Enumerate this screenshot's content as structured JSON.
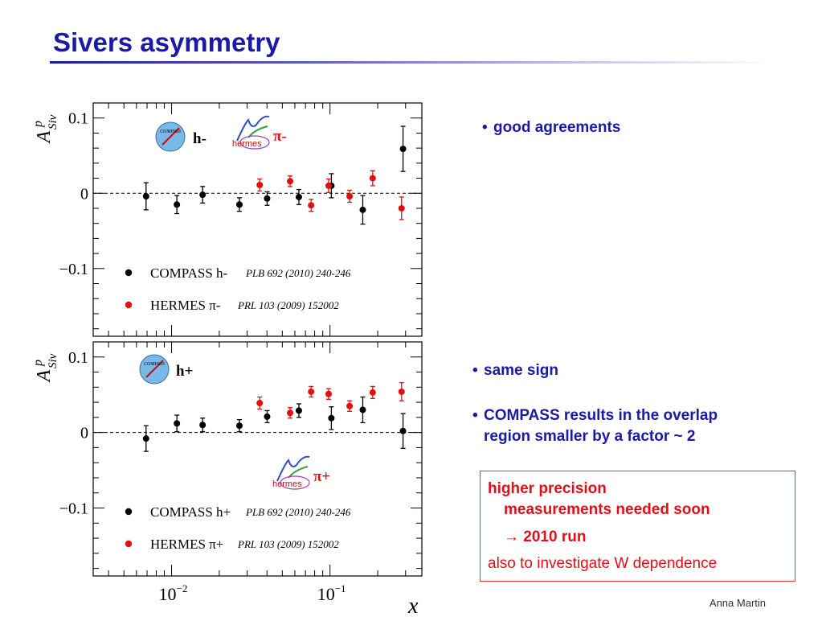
{
  "slide": {
    "title": "Sivers asymmetry",
    "footer": "Anna Martin"
  },
  "bullets_top": [
    "good agreements"
  ],
  "bullets_bottom": [
    "same sign",
    "COMPASS results in the overlap",
    "region smaller by a factor ~ 2"
  ],
  "red_box": {
    "line1": "higher precision",
    "line2": "measurements needed soon",
    "line3": "→ 2010 run",
    "line4": "also to investigate W dependence"
  },
  "colors": {
    "title": "#1a1aa6",
    "compass": "#000000",
    "hermes": "#e01010",
    "box_text": "#e0101a"
  },
  "icons": [
    "compass-logo-icon",
    "hermes-logo-icon"
  ],
  "chart_data": [
    {
      "type": "scatter",
      "panel": "top",
      "ylabel": "A",
      "ylabel_sup": "p",
      "ylabel_sub": "Siv",
      "ylim": [
        -0.19,
        0.12
      ],
      "xlim": [
        0.0032,
        0.38
      ],
      "x_log": true,
      "yticks": [
        "0.1",
        "0",
        "−0.1"
      ],
      "ytick_values": [
        0.1,
        0,
        -0.1
      ],
      "dashed_zero": true,
      "logo_labels": {
        "compass": "h-",
        "hermes": "π-",
        "hermes_text": "hermes"
      },
      "legend": [
        {
          "label": "COMPASS h-",
          "ref": "PLB 692 (2010) 240-246"
        },
        {
          "label": "HERMES π-",
          "ref": "PRL 103 (2009) 152002"
        }
      ],
      "series": [
        {
          "name": "COMPASS h-",
          "x": [
            0.0069,
            0.0108,
            0.0157,
            0.0268,
            0.0401,
            0.0636,
            0.102,
            0.161,
            0.289
          ],
          "y": [
            -0.004,
            -0.015,
            -0.002,
            -0.015,
            -0.007,
            -0.005,
            0.01,
            -0.022,
            0.059
          ],
          "err": [
            0.018,
            0.012,
            0.011,
            0.009,
            0.009,
            0.01,
            0.016,
            0.019,
            0.03
          ]
        },
        {
          "name": "HERMES π-",
          "x": [
            0.036,
            0.056,
            0.076,
            0.098,
            0.133,
            0.186,
            0.283
          ],
          "y": [
            0.011,
            0.016,
            -0.016,
            0.01,
            -0.004,
            0.02,
            -0.02
          ],
          "err": [
            0.008,
            0.007,
            0.008,
            0.009,
            0.008,
            0.01,
            0.015
          ]
        }
      ]
    },
    {
      "type": "scatter",
      "panel": "bottom",
      "ylabel": "A",
      "ylabel_sup": "p",
      "ylabel_sub": "Siv",
      "xlabel": "x",
      "ylim": [
        -0.19,
        0.12
      ],
      "xlim": [
        0.0032,
        0.38
      ],
      "x_log": true,
      "yticks": [
        "0.1",
        "0",
        "−0.1"
      ],
      "ytick_values": [
        0.1,
        0,
        -0.1
      ],
      "xticks": [
        "10",
        "10"
      ],
      "xtick_exps": [
        "−2",
        "−1"
      ],
      "xtick_values": [
        0.01,
        0.1
      ],
      "dashed_zero": true,
      "logo_labels": {
        "compass": "h+",
        "hermes": "π+",
        "hermes_text": "hermes"
      },
      "legend": [
        {
          "label": "COMPASS h+",
          "ref": "PLB 692 (2010) 240-246"
        },
        {
          "label": "HERMES π+",
          "ref": "PRL 103 (2009) 152002"
        }
      ],
      "series": [
        {
          "name": "COMPASS h+",
          "x": [
            0.0069,
            0.0108,
            0.0157,
            0.0268,
            0.0401,
            0.0636,
            0.102,
            0.161,
            0.289
          ],
          "y": [
            -0.008,
            0.012,
            0.01,
            0.009,
            0.021,
            0.029,
            0.019,
            0.03,
            0.002
          ],
          "err": [
            0.017,
            0.011,
            0.009,
            0.008,
            0.008,
            0.009,
            0.015,
            0.017,
            0.023
          ]
        },
        {
          "name": "HERMES π+",
          "x": [
            0.036,
            0.056,
            0.076,
            0.098,
            0.133,
            0.186,
            0.283
          ],
          "y": [
            0.039,
            0.026,
            0.054,
            0.051,
            0.035,
            0.053,
            0.054
          ],
          "err": [
            0.008,
            0.007,
            0.007,
            0.007,
            0.007,
            0.008,
            0.012
          ]
        }
      ]
    }
  ]
}
